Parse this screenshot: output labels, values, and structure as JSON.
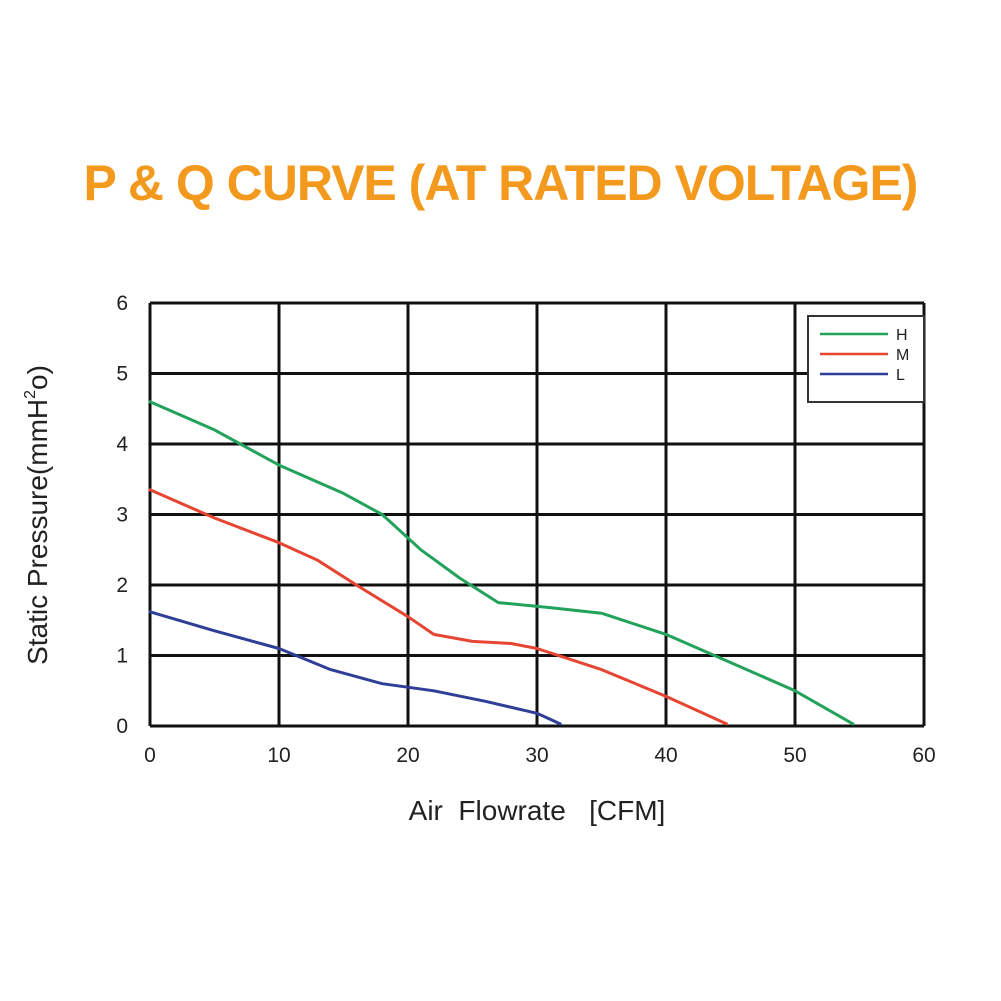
{
  "colors": {
    "title": "#f39a1e",
    "H": "#22a25a",
    "M": "#e64532",
    "L": "#2f3f97",
    "grid": "#111111"
  },
  "chart_data": {
    "type": "line",
    "title": "P & Q CURVE (AT RATED VOLTAGE)",
    "xlabel": "Air  Flowrate   [CFM]",
    "ylabel_main": "Static Pressure(mmH",
    "ylabel_sup": "2",
    "ylabel_end": "o)",
    "xlim": [
      0,
      60
    ],
    "ylim": [
      0,
      6
    ],
    "xticks": [
      "0",
      "10",
      "20",
      "30",
      "40",
      "50",
      "60"
    ],
    "yticks": [
      "0",
      "1",
      "2",
      "3",
      "4",
      "5",
      "6"
    ],
    "grid": true,
    "legend_position": "top-right",
    "series": [
      {
        "name": "H",
        "color": "#22a25a",
        "points": [
          [
            0,
            4.6
          ],
          [
            5,
            4.2
          ],
          [
            10,
            3.7
          ],
          [
            15,
            3.3
          ],
          [
            18,
            3.0
          ],
          [
            21,
            2.5
          ],
          [
            24,
            2.1
          ],
          [
            27,
            1.75
          ],
          [
            31,
            1.68
          ],
          [
            35,
            1.6
          ],
          [
            40,
            1.3
          ],
          [
            45,
            0.9
          ],
          [
            50,
            0.5
          ],
          [
            54.5,
            0.03
          ]
        ]
      },
      {
        "name": "M",
        "color": "#e64532",
        "points": [
          [
            0,
            3.35
          ],
          [
            5,
            2.95
          ],
          [
            10,
            2.6
          ],
          [
            13,
            2.35
          ],
          [
            16,
            2.0
          ],
          [
            20,
            1.55
          ],
          [
            22,
            1.3
          ],
          [
            25,
            1.2
          ],
          [
            28,
            1.17
          ],
          [
            30,
            1.1
          ],
          [
            35,
            0.8
          ],
          [
            40,
            0.42
          ],
          [
            44.7,
            0.03
          ]
        ]
      },
      {
        "name": "L",
        "color": "#2f3f97",
        "points": [
          [
            0,
            1.62
          ],
          [
            5,
            1.35
          ],
          [
            10,
            1.1
          ],
          [
            14,
            0.8
          ],
          [
            18,
            0.6
          ],
          [
            22,
            0.5
          ],
          [
            26,
            0.35
          ],
          [
            30,
            0.18
          ],
          [
            31.8,
            0.03
          ]
        ]
      }
    ]
  }
}
